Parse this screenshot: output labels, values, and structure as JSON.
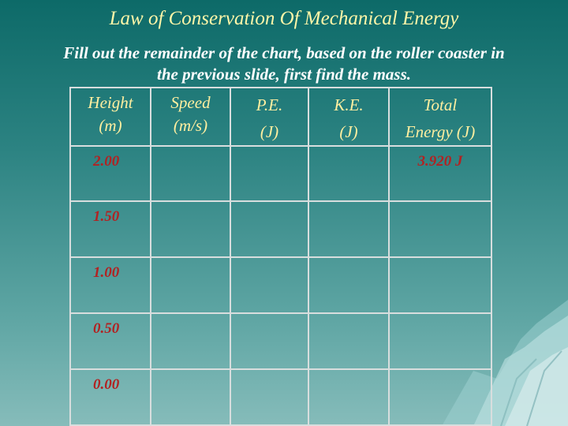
{
  "title": "Law of Conservation Of Mechanical Energy",
  "subtitle": {
    "line1": "Fill out the remainder of the chart, based on the roller coaster in",
    "line2": "the previous slide, first find the mass."
  },
  "table": {
    "headers": {
      "height": {
        "line1": "Height",
        "line2": "(m)"
      },
      "speed": {
        "line1": "Speed",
        "line2": "(m/s)"
      },
      "pe": {
        "line1": "P.E.",
        "line2": "(J)"
      },
      "ke": {
        "line1": "K.E.",
        "line2": "(J)"
      },
      "total": {
        "line1": "Total",
        "line2": "Energy (J)"
      }
    },
    "rows": [
      {
        "height": "2.00",
        "speed": "",
        "pe": "",
        "ke": "",
        "total": "3.920 J"
      },
      {
        "height": "1.50",
        "speed": "",
        "pe": "",
        "ke": "",
        "total": ""
      },
      {
        "height": "1.00",
        "speed": "",
        "pe": "",
        "ke": "",
        "total": ""
      },
      {
        "height": "0.50",
        "speed": "",
        "pe": "",
        "ke": "",
        "total": ""
      },
      {
        "height": "0.00",
        "speed": "",
        "pe": "",
        "ke": "",
        "total": ""
      }
    ]
  },
  "colors": {
    "background_top": "#0d6a68",
    "background_bottom": "#86bcba",
    "title": "#fff6a8",
    "header_text": "#ffefa0",
    "cell_text": "#b22222",
    "grid_lines": "#d8dede"
  },
  "decoration": "iceberg-mountain-graphic"
}
